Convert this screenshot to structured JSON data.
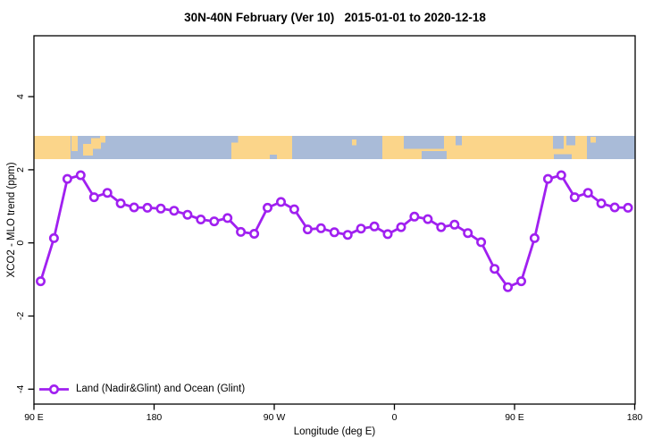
{
  "title": "30N-40N February (Ver 10)   2015-01-01 to 2020-12-18",
  "colors": {
    "line": "#A020F0",
    "marker_fill": "#FFFFFF",
    "land": "#FBD58A",
    "ocean": "#A9BBD8",
    "axis": "#000000"
  },
  "legend": {
    "label": "Land (Nadir&Glint) and Ocean (Glint)"
  },
  "chart_data": {
    "type": "line",
    "title": "30N-40N February (Ver 10)   2015-01-01 to 2020-12-18",
    "xlabel": "Longitude (deg E)",
    "ylabel": "XCO2 - MLO trend (ppm)",
    "xlim": [
      90,
      540
    ],
    "ylim": [
      -4.4,
      5.7
    ],
    "grid": false,
    "legend_position": "bottom-left",
    "x_ticks": [
      {
        "x": 90,
        "label": "90 E"
      },
      {
        "x": 180,
        "label": "180"
      },
      {
        "x": 270,
        "label": "90 W"
      },
      {
        "x": 360,
        "label": "0"
      },
      {
        "x": 450,
        "label": "90 E"
      },
      {
        "x": 540,
        "label": "180"
      }
    ],
    "y_ticks": [
      {
        "y": 4,
        "label": "4"
      },
      {
        "y": 2,
        "label": "2"
      },
      {
        "y": 0,
        "label": "0"
      },
      {
        "y": -2,
        "label": "-2"
      },
      {
        "y": -4,
        "label": "-4"
      }
    ],
    "series": [
      {
        "name": "Land (Nadir&Glint) and Ocean (Glint)",
        "marker": "open-circle",
        "x": [
          95,
          105,
          115,
          125,
          135,
          145,
          155,
          165,
          175,
          185,
          195,
          205,
          215,
          225,
          235,
          245,
          255,
          265,
          275,
          285,
          295,
          305,
          315,
          325,
          335,
          345,
          355,
          365,
          375,
          385,
          395,
          405,
          415,
          425,
          435,
          445,
          455,
          465,
          475,
          485,
          495,
          505,
          515,
          525,
          535
        ],
        "y": [
          -1.05,
          0.13,
          1.75,
          1.85,
          1.25,
          1.37,
          1.08,
          0.97,
          0.96,
          0.94,
          0.88,
          0.77,
          0.64,
          0.59,
          0.68,
          0.3,
          0.25,
          0.96,
          1.12,
          0.92,
          0.37,
          0.4,
          0.29,
          0.22,
          0.39,
          0.45,
          0.24,
          0.43,
          0.72,
          0.65,
          0.43,
          0.5,
          0.27,
          0.02,
          -0.71,
          -1.21,
          -1.05,
          0.13,
          1.75,
          1.85,
          1.25,
          1.37,
          1.08,
          0.97,
          0.96
        ]
      }
    ],
    "map_strip": {
      "description": "world coastline band 30N-40N drawn across the plot",
      "y_range": [
        2.29,
        2.93
      ],
      "land_segments": [
        {
          "x1": 90,
          "x2": 117.4,
          "t": 0,
          "b": 1
        },
        {
          "x1": 118.1,
          "x2": 122.8,
          "t": 0,
          "b": 0.65
        },
        {
          "x1": 126.8,
          "x2": 134.2,
          "t": 0.35,
          "b": 0.85
        },
        {
          "x1": 132.8,
          "x2": 140.2,
          "t": 0.1,
          "b": 0.55
        },
        {
          "x1": 139.5,
          "x2": 143.5,
          "t": 0,
          "b": 0.3
        },
        {
          "x1": 237.9,
          "x2": 283.4,
          "t": 0,
          "b": 1
        },
        {
          "x1": 328.2,
          "x2": 331.6,
          "t": 0.15,
          "b": 0.4
        },
        {
          "x1": 351.0,
          "x2": 504.2,
          "t": 0,
          "b": 1
        },
        {
          "x1": 506.9,
          "x2": 510.9,
          "t": 0.05,
          "b": 0.3
        }
      ],
      "ocean_patches": [
        {
          "x1": 237.9,
          "x2": 243.0,
          "t": 0,
          "b": 0.3
        },
        {
          "x1": 266.7,
          "x2": 272.0,
          "t": 0.8,
          "b": 1
        },
        {
          "x1": 367.1,
          "x2": 397.2,
          "t": 0,
          "b": 0.55
        },
        {
          "x1": 380.4,
          "x2": 399.2,
          "t": 0.65,
          "b": 1
        },
        {
          "x1": 405.9,
          "x2": 410.6,
          "t": 0,
          "b": 0.4
        },
        {
          "x1": 478.8,
          "x2": 486.8,
          "t": 0,
          "b": 0.55
        },
        {
          "x1": 479.4,
          "x2": 492.8,
          "t": 0.78,
          "b": 1
        },
        {
          "x1": 488.8,
          "x2": 495.5,
          "t": 0,
          "b": 0.4
        }
      ]
    }
  }
}
